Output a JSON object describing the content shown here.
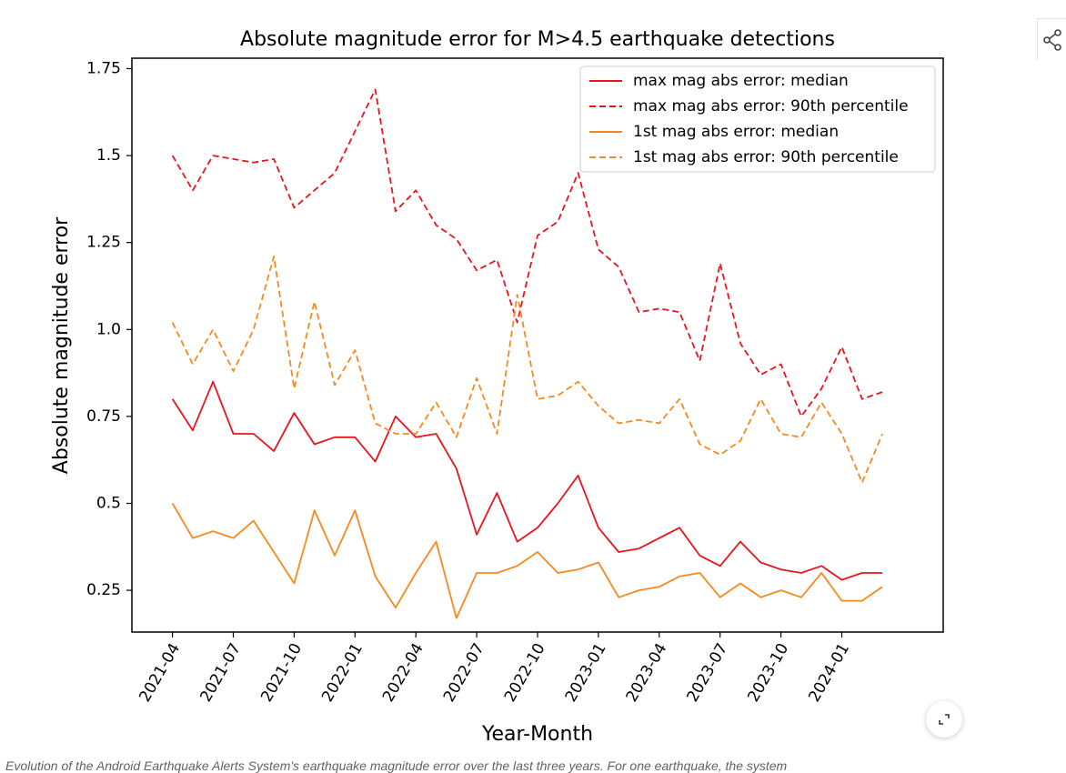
{
  "caption": "Evolution of the Android Earthquake Alerts System's earthquake magnitude error over the last three years. For one earthquake, the system",
  "icons": {
    "share": "share-icon",
    "expand": "expand-icon"
  },
  "chart_data": {
    "type": "line",
    "title": "Absolute magnitude error for M>4.5 earthquake detections",
    "xlabel": "Year-Month",
    "ylabel": "Absolute magnitude error",
    "xlim": [
      "2021-02",
      "2024-06"
    ],
    "ylim": [
      0.13,
      1.78
    ],
    "x_ticks": [
      "2021-04",
      "2021-07",
      "2021-10",
      "2022-01",
      "2022-04",
      "2022-07",
      "2022-10",
      "2023-01",
      "2023-04",
      "2023-07",
      "2023-10",
      "2024-01"
    ],
    "y_ticks": [
      "0.25",
      "0.5",
      "0.75",
      "1.0",
      "1.25",
      "1.5",
      "1.75"
    ],
    "grid": false,
    "legend_position": "top-right",
    "x": [
      "2021-04",
      "2021-05",
      "2021-06",
      "2021-07",
      "2021-08",
      "2021-09",
      "2021-10",
      "2021-11",
      "2021-12",
      "2022-01",
      "2022-02",
      "2022-03",
      "2022-04",
      "2022-05",
      "2022-06",
      "2022-07",
      "2022-08",
      "2022-09",
      "2022-10",
      "2022-11",
      "2022-12",
      "2023-01",
      "2023-02",
      "2023-03",
      "2023-04",
      "2023-05",
      "2023-06",
      "2023-07",
      "2023-08",
      "2023-09",
      "2023-10",
      "2023-11",
      "2023-12",
      "2024-01",
      "2024-02",
      "2024-03"
    ],
    "series": [
      {
        "name": "max mag abs error: median",
        "color": "#e8141e",
        "dash": "solid",
        "values": [
          0.8,
          0.71,
          0.85,
          0.7,
          0.7,
          0.65,
          0.76,
          0.67,
          0.69,
          0.69,
          0.62,
          0.75,
          0.69,
          0.7,
          0.6,
          0.41,
          0.53,
          0.39,
          0.43,
          0.5,
          0.58,
          0.43,
          0.36,
          0.37,
          0.4,
          0.43,
          0.35,
          0.32,
          0.39,
          0.33,
          0.31,
          0.3,
          0.32,
          0.28,
          0.3,
          0.3
        ]
      },
      {
        "name": "max mag abs error: 90th percentile",
        "color": "#e8141e",
        "dash": "dashed",
        "values": [
          1.5,
          1.4,
          1.5,
          1.49,
          1.48,
          1.49,
          1.35,
          1.4,
          1.45,
          1.57,
          1.69,
          1.34,
          1.4,
          1.3,
          1.26,
          1.17,
          1.2,
          1.02,
          1.27,
          1.31,
          1.45,
          1.23,
          1.18,
          1.05,
          1.06,
          1.05,
          0.91,
          1.19,
          0.96,
          0.87,
          0.9,
          0.75,
          0.83,
          0.95,
          0.8,
          0.82
        ]
      },
      {
        "name": "1st mag abs error: median",
        "color": "#f6891f",
        "dash": "solid",
        "values": [
          0.5,
          0.4,
          0.42,
          0.4,
          0.45,
          0.36,
          0.27,
          0.48,
          0.35,
          0.48,
          0.29,
          0.2,
          0.3,
          0.39,
          0.17,
          0.3,
          0.3,
          0.32,
          0.36,
          0.3,
          0.31,
          0.33,
          0.23,
          0.25,
          0.26,
          0.29,
          0.3,
          0.23,
          0.27,
          0.23,
          0.25,
          0.23,
          0.3,
          0.22,
          0.22,
          0.26
        ]
      },
      {
        "name": "1st mag abs error: 90th percentile",
        "color": "#f6891f",
        "dash": "dashed",
        "values": [
          1.02,
          0.9,
          1.0,
          0.88,
          1.0,
          1.21,
          0.83,
          1.08,
          0.84,
          0.94,
          0.73,
          0.7,
          0.7,
          0.79,
          0.69,
          0.86,
          0.7,
          1.1,
          0.8,
          0.81,
          0.85,
          0.78,
          0.73,
          0.74,
          0.73,
          0.8,
          0.67,
          0.64,
          0.68,
          0.8,
          0.7,
          0.69,
          0.79,
          0.7,
          0.56,
          0.7
        ]
      }
    ]
  }
}
